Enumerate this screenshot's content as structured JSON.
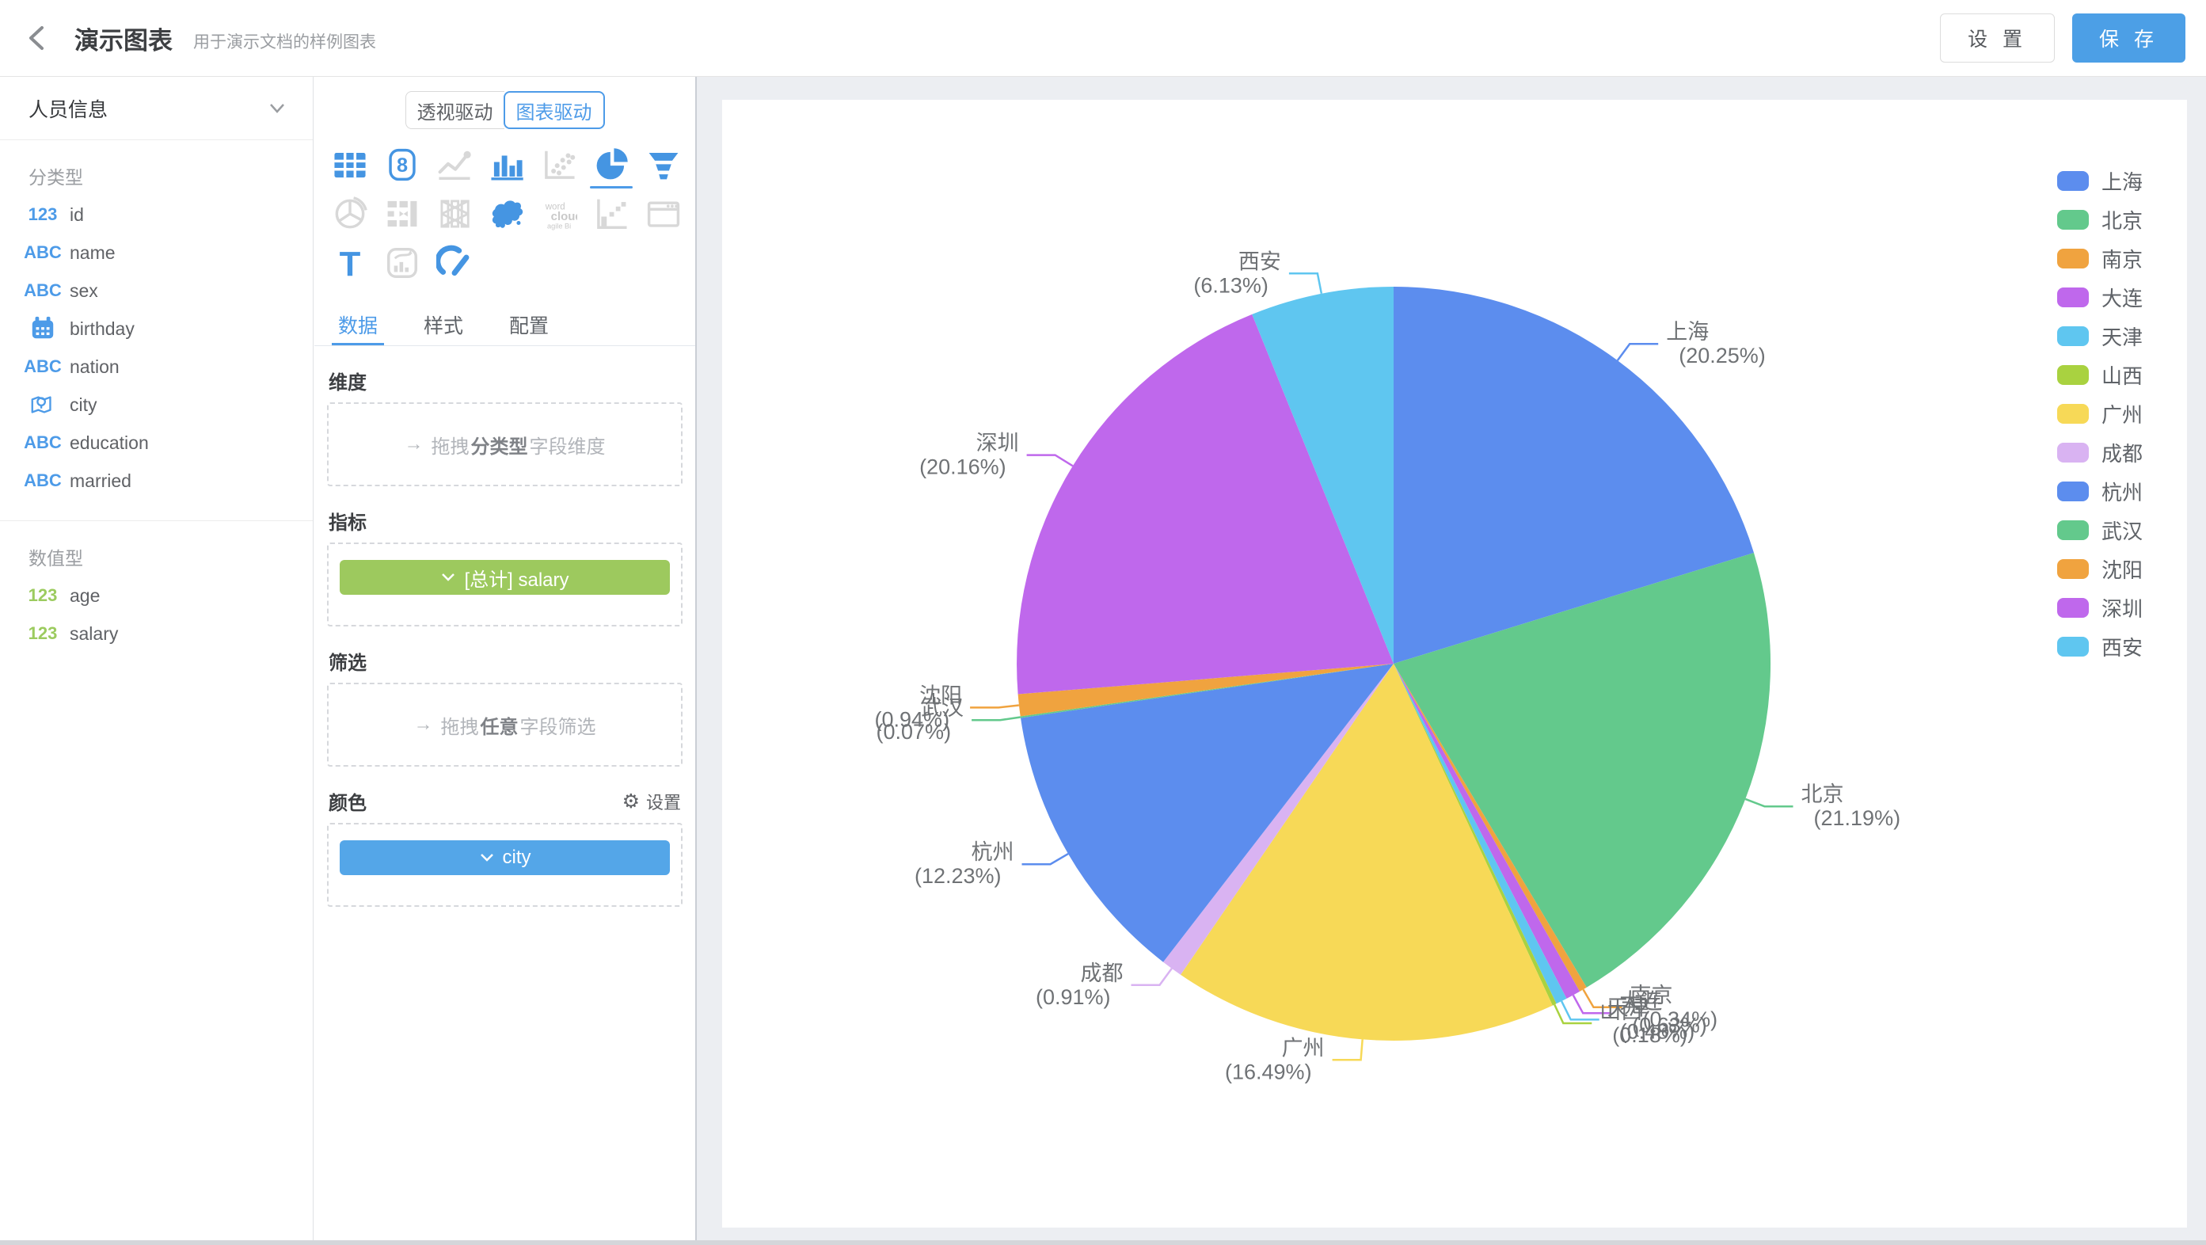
{
  "header": {
    "title": "演示图表",
    "subtitle": "用于演示文档的样例图表",
    "settings_label": "设 置",
    "save_label": "保 存",
    "save_color": "#4C9FE6"
  },
  "glyphs": {
    "drag_arrow": "→",
    "gear": "⚙",
    "kpi_digit": "8",
    "text_icon_glyph": "T",
    "word_cloud_lines": [
      "word",
      "cloud",
      "agile Bi"
    ]
  },
  "sidebar": {
    "dataset_name": "人员信息",
    "sections": [
      {
        "label": "分类型",
        "fields": [
          {
            "icon": "number-field-icon",
            "icon_text": "123",
            "icon_color": "blue",
            "name": "id"
          },
          {
            "icon": "text-field-icon",
            "icon_text": "ABC",
            "icon_color": "blue",
            "name": "name"
          },
          {
            "icon": "text-field-icon",
            "icon_text": "ABC",
            "icon_color": "blue",
            "name": "sex"
          },
          {
            "icon": "calendar-icon",
            "name": "birthday"
          },
          {
            "icon": "text-field-icon",
            "icon_text": "ABC",
            "icon_color": "blue",
            "name": "nation"
          },
          {
            "icon": "map-pin-icon",
            "name": "city"
          },
          {
            "icon": "text-field-icon",
            "icon_text": "ABC",
            "icon_color": "blue",
            "name": "education"
          },
          {
            "icon": "text-field-icon",
            "icon_text": "ABC",
            "icon_color": "blue",
            "name": "married"
          }
        ]
      },
      {
        "label": "数值型",
        "fields": [
          {
            "icon": "number-field-icon",
            "icon_text": "123",
            "icon_color": "green",
            "name": "age"
          },
          {
            "icon": "number-field-icon",
            "icon_text": "123",
            "icon_color": "green",
            "name": "salary"
          }
        ]
      }
    ],
    "icon_blue": "#4D9BE8",
    "icon_green": "#9CCB5F"
  },
  "panel": {
    "mode_toggle": {
      "options": [
        "透视驱动",
        "图表驱动"
      ],
      "selected_index": 1
    },
    "chart_types": [
      "table",
      "kpi-card",
      "line-chart",
      "bar-chart",
      "scatter-plot",
      "pie-chart",
      "funnel",
      "rose-pie",
      "gantt",
      "candlestick",
      "china-map",
      "word-cloud",
      "pareto",
      "web-frame",
      "text",
      "combo-card",
      "gauge"
    ],
    "selected_chart_type": "pie-chart",
    "tabs": [
      "数据",
      "样式",
      "配置"
    ],
    "active_tab": "数据",
    "dimension": {
      "label": "维度",
      "ph_prefix": "拖拽",
      "ph_bold": "分类型",
      "ph_suffix": "字段维度"
    },
    "metric": {
      "label": "指标",
      "pill_label": "[总计] salary",
      "pill_color": "#9DC95E"
    },
    "filter": {
      "label": "筛选",
      "ph_prefix": "拖拽",
      "ph_bold": "任意",
      "ph_suffix": "字段筛选"
    },
    "color": {
      "label": "颜色",
      "settings_label": "设置",
      "pill_label": "city",
      "pill_color": "#54A6E8"
    }
  },
  "chart_data": {
    "type": "pie",
    "title": "",
    "categories": [
      "上海",
      "北京",
      "南京",
      "大连",
      "天津",
      "山西",
      "广州",
      "成都",
      "杭州",
      "武汉",
      "沈阳",
      "深圳",
      "西安"
    ],
    "values": [
      20.25,
      21.19,
      0.34,
      0.63,
      0.48,
      0.18,
      16.49,
      0.91,
      12.23,
      0.07,
      0.94,
      20.16,
      6.13
    ],
    "unit": "%",
    "colors": [
      "#5C8DEE",
      "#63C98C",
      "#F0A33F",
      "#BF68EC",
      "#5FC6F0",
      "#A9D240",
      "#F7D957",
      "#D9B3F2",
      "#5C8DEE",
      "#63C98C",
      "#F0A33F",
      "#BF68EC",
      "#5FC6F0"
    ],
    "label_format": "name (pct%)",
    "legend_position": "right",
    "metric_field": "salary",
    "color_field": "city"
  }
}
